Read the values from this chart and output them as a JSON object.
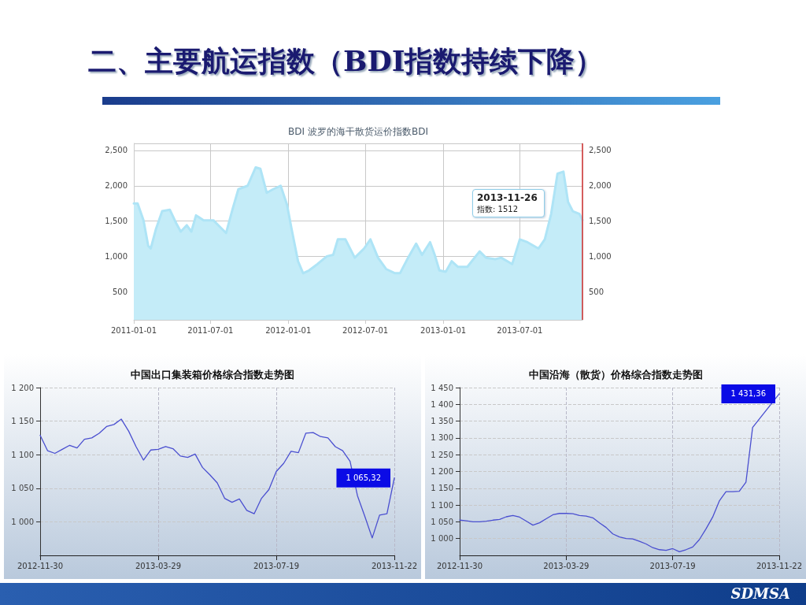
{
  "chart_data": [
    {
      "type": "area",
      "title": "BDI 波罗的海干散货运价指数BDI",
      "color": "#c4ecf8",
      "x": [
        "2011-01-01",
        "2011-01-10",
        "2011-01-24",
        "2011-02-04",
        "2011-02-10",
        "2011-02-22",
        "2011-03-09",
        "2011-03-27",
        "2011-04-11",
        "2011-04-22",
        "2011-05-06",
        "2011-05-17",
        "2011-05-28",
        "2011-06-15",
        "2011-07-08",
        "2011-07-23",
        "2011-08-07",
        "2011-08-22",
        "2011-09-05",
        "2011-09-27",
        "2011-10-16",
        "2011-10-27",
        "2011-11-11",
        "2011-11-26",
        "2011-12-14",
        "2011-12-29",
        "2012-01-09",
        "2012-01-24",
        "2012-02-05",
        "2012-02-19",
        "2012-03-10",
        "2012-04-01",
        "2012-04-16",
        "2012-04-27",
        "2012-05-15",
        "2012-06-06",
        "2012-06-28",
        "2012-07-13",
        "2012-07-31",
        "2012-08-19",
        "2012-09-09",
        "2012-09-21",
        "2012-10-10",
        "2012-10-29",
        "2012-11-12",
        "2012-12-01",
        "2012-12-12",
        "2012-12-23",
        "2013-01-07",
        "2013-01-21",
        "2013-02-05",
        "2013-02-27",
        "2013-03-28",
        "2013-04-12",
        "2013-05-04",
        "2013-05-18",
        "2013-06-13",
        "2013-07-01",
        "2013-07-19",
        "2013-08-14",
        "2013-08-29",
        "2013-09-13",
        "2013-09-28",
        "2013-10-12",
        "2013-10-23",
        "2013-11-03",
        "2013-11-19",
        "2013-11-26"
      ],
      "values": [
        1750,
        1750,
        1510,
        1150,
        1110,
        1380,
        1640,
        1660,
        1470,
        1350,
        1440,
        1350,
        1580,
        1510,
        1510,
        1420,
        1330,
        1660,
        1950,
        2000,
        2260,
        2240,
        1900,
        1950,
        2000,
        1730,
        1380,
        930,
        760,
        800,
        890,
        1000,
        1020,
        1240,
        1240,
        980,
        1110,
        1240,
        980,
        820,
        760,
        760,
        980,
        1180,
        1020,
        1200,
        1020,
        800,
        780,
        930,
        850,
        850,
        1070,
        980,
        960,
        980,
        890,
        1240,
        1200,
        1110,
        1240,
        1600,
        2170,
        2200,
        1770,
        1640,
        1600,
        1512
      ],
      "xlim": [
        "2011-01-01",
        "2013-11-26"
      ],
      "xticks": [
        "2011-01-01",
        "2011-07-01",
        "2012-01-01",
        "2012-07-01",
        "2013-01-01",
        "2013-07-01"
      ],
      "ylim": [
        100,
        2600
      ],
      "yticks": [
        {
          "value": 500,
          "label": "500"
        },
        {
          "value": 1000,
          "label": "1,000"
        },
        {
          "value": 1500,
          "label": "1,500"
        },
        {
          "value": 2000,
          "label": "2,000"
        },
        {
          "value": 2500,
          "label": "2,500"
        }
      ],
      "y2lim": [
        100,
        2600
      ],
      "y2ticks": [
        {
          "value": 500,
          "label": "500"
        },
        {
          "value": 1000,
          "label": "1,000"
        },
        {
          "value": 1500,
          "label": "1,500"
        },
        {
          "value": 2000,
          "label": "2,000"
        },
        {
          "value": 2500,
          "label": "2,500"
        }
      ],
      "grid": true,
      "ref_lines": [
        {
          "axis": "x",
          "value": "2013-11-26",
          "color": "#d03030"
        }
      ],
      "annotations": [
        "二、主要航运指数（BDI指数持续下降）",
        "SDMSA",
        "2013-11-26",
        "指数: 1512"
      ]
    },
    {
      "type": "line",
      "title": "中国出口集装箱价格综合指数走势图",
      "color": "#4a4fd0",
      "categories": [
        "2012-11-30",
        null,
        null,
        null,
        null,
        null,
        null,
        null,
        null,
        null,
        null,
        null,
        null,
        null,
        null,
        null,
        "2013-03-29",
        null,
        null,
        null,
        null,
        null,
        null,
        null,
        null,
        null,
        null,
        null,
        null,
        null,
        null,
        null,
        "2013-07-19",
        null,
        null,
        null,
        null,
        null,
        null,
        null,
        null,
        null,
        null,
        null,
        null,
        null,
        null,
        null,
        "2013-11-22"
      ],
      "values": [
        1129,
        1106,
        1102,
        1108,
        1114,
        1110,
        1123,
        1125,
        1132,
        1142,
        1145,
        1153,
        1135,
        1112,
        1092,
        1107,
        1108,
        1112,
        1109,
        1098,
        1096,
        1101,
        1081,
        1070,
        1058,
        1035,
        1029,
        1034,
        1017,
        1012,
        1035,
        1048,
        1075,
        1087,
        1105,
        1103,
        1132,
        1133,
        1127,
        1125,
        1112,
        1106,
        1090,
        1039,
        1008,
        976,
        1010,
        1012,
        1065.32
      ],
      "value_labels": [
        null,
        null,
        null,
        null,
        null,
        null,
        null,
        null,
        null,
        null,
        null,
        null,
        null,
        null,
        null,
        null,
        null,
        null,
        null,
        null,
        null,
        null,
        null,
        null,
        null,
        null,
        null,
        null,
        null,
        null,
        null,
        null,
        null,
        null,
        null,
        null,
        null,
        null,
        null,
        null,
        null,
        null,
        null,
        null,
        null,
        null,
        null,
        null,
        "1 065,32"
      ],
      "ylim": [
        950,
        1200
      ],
      "yticks": [
        {
          "value": 1000,
          "label": "1 000"
        },
        {
          "value": 1050,
          "label": "1 050"
        },
        {
          "value": 1100,
          "label": "1 100"
        },
        {
          "value": 1150,
          "label": "1 150"
        },
        {
          "value": 1200,
          "label": "1 200"
        }
      ],
      "grid": true,
      "line_style": "solid"
    },
    {
      "type": "line",
      "title": "中国沿海（散货）价格综合指数走势图",
      "color": "#4a4fd0",
      "categories": [
        "2012-11-30",
        null,
        null,
        null,
        null,
        null,
        null,
        null,
        null,
        null,
        null,
        null,
        null,
        null,
        null,
        null,
        "2013-03-29",
        null,
        null,
        null,
        null,
        null,
        null,
        null,
        null,
        null,
        null,
        null,
        null,
        null,
        null,
        null,
        "2013-07-19",
        null,
        null,
        null,
        null,
        null,
        null,
        null,
        null,
        null,
        null,
        null,
        null,
        null,
        null,
        null,
        "2013-11-22"
      ],
      "values": [
        1055,
        1053,
        1050,
        1050,
        1052,
        1055,
        1057,
        1065,
        1069,
        1064,
        1052,
        1040,
        1047,
        1059,
        1071,
        1075,
        1075,
        1074,
        1069,
        1067,
        1062,
        1047,
        1033,
        1014,
        1005,
        1000,
        999,
        992,
        984,
        973,
        967,
        965,
        970,
        961,
        967,
        975,
        997,
        1029,
        1064,
        1112,
        1140,
        1140,
        1141,
        1168,
        1331,
        null,
        null,
        null,
        1431.36
      ],
      "value_labels": [
        null,
        null,
        null,
        null,
        null,
        null,
        null,
        null,
        null,
        null,
        null,
        null,
        null,
        null,
        null,
        null,
        null,
        null,
        null,
        null,
        null,
        null,
        null,
        null,
        null,
        null,
        null,
        null,
        null,
        null,
        null,
        null,
        null,
        null,
        null,
        null,
        null,
        null,
        null,
        null,
        null,
        null,
        null,
        null,
        null,
        null,
        null,
        null,
        "1 431,36"
      ],
      "ylim": [
        950,
        1450
      ],
      "yticks": [
        {
          "value": 1000,
          "label": "1 000"
        },
        {
          "value": 1050,
          "label": "1 050"
        },
        {
          "value": 1100,
          "label": "1 100"
        },
        {
          "value": 1150,
          "label": "1 150"
        },
        {
          "value": 1200,
          "label": "1 200"
        },
        {
          "value": 1250,
          "label": "1 250"
        },
        {
          "value": 1300,
          "label": "1 300"
        },
        {
          "value": 1350,
          "label": "1 350"
        },
        {
          "value": 1400,
          "label": "1 400"
        },
        {
          "value": 1450,
          "label": "1 450"
        }
      ],
      "grid": true,
      "line_style": "solid"
    }
  ]
}
